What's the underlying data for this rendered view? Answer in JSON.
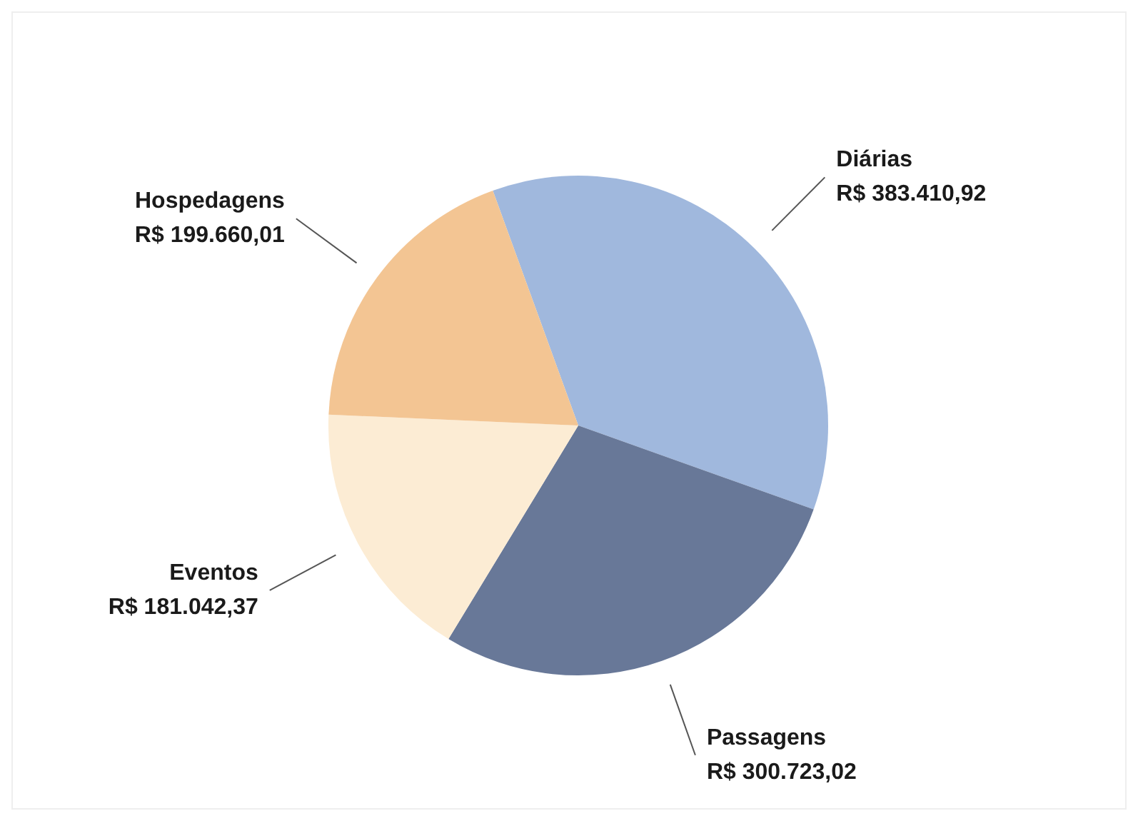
{
  "chart_data": {
    "type": "pie",
    "categories": [
      "Diárias",
      "Passagens",
      "Eventos",
      "Hospedagens"
    ],
    "values": [
      383410.92,
      300723.02,
      181042.37,
      199660.01
    ],
    "colors": [
      "#a0b8dd",
      "#687898",
      "#fcecd4",
      "#f3c593"
    ],
    "value_labels": [
      "R$ 383.410,92",
      "R$ 300.723,02",
      "R$ 181.042,37",
      "R$ 199.660,01"
    ],
    "legend": false
  }
}
